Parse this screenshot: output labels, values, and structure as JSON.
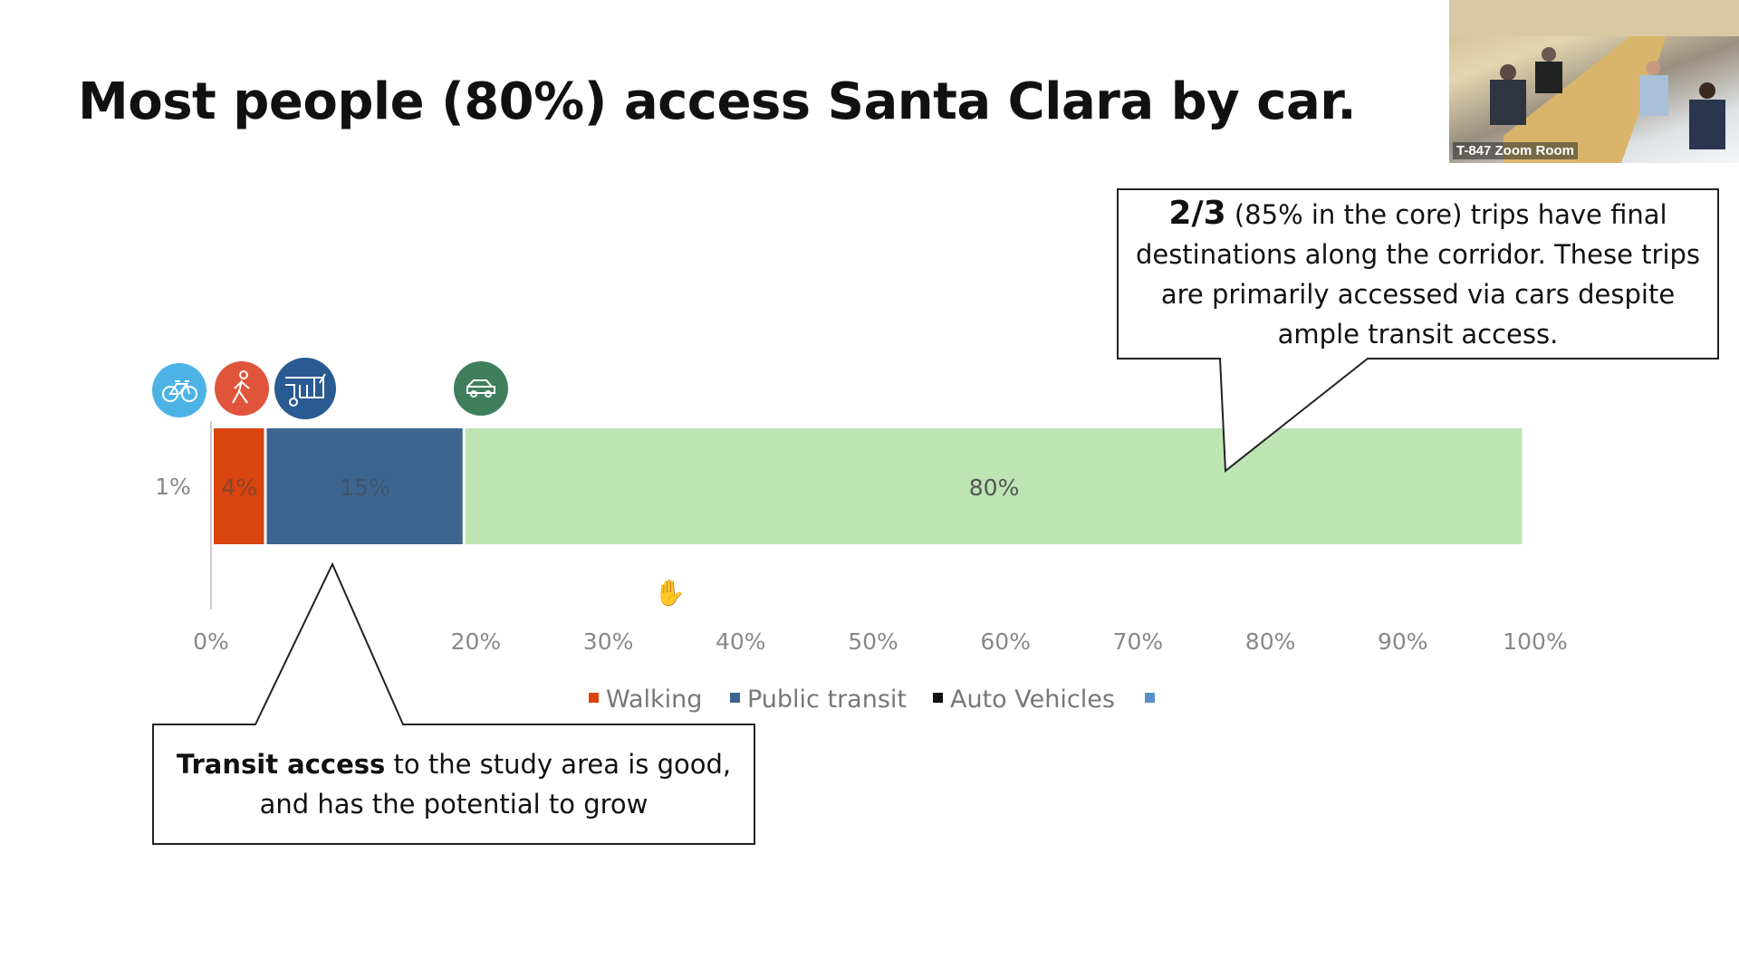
{
  "slide": {
    "title": "Most people (80%) access Santa Clara by car."
  },
  "video_tile": {
    "label": "T-847 Zoom Room"
  },
  "callouts": {
    "top_right": {
      "bold": "2/3",
      "text": " (85% in the core) trips have final destinations along the corridor. These trips are primarily accessed via cars despite ample transit access."
    },
    "bottom_left": {
      "bold": "Transit access",
      "text": " to the study area is good, and has the potential to grow"
    }
  },
  "chart_data": {
    "type": "bar",
    "orientation": "horizontal-stacked-100",
    "categories": [
      ""
    ],
    "series": [
      {
        "name": "",
        "values": [
          1
        ],
        "label": "1%",
        "color": "#4db3e6",
        "icon": "bicycle-icon"
      },
      {
        "name": "Walking",
        "values": [
          4
        ],
        "label": "4%",
        "color": "#d9440f",
        "icon": "pedestrian-icon"
      },
      {
        "name": "Public transit",
        "values": [
          15
        ],
        "label": "15%",
        "color": "#3c6690",
        "icon": "bus-icon"
      },
      {
        "name": "Auto Vehicles",
        "values": [
          80
        ],
        "label": "80%",
        "color": "#bde4b3",
        "icon": "car-icon"
      }
    ],
    "icon_colors": {
      "bicycle-icon": "#4db3e6",
      "pedestrian-icon": "#e0543c",
      "bus-icon": "#2a5a92",
      "car-icon": "#3f7f5c"
    },
    "xlim": [
      0,
      100
    ],
    "xticks": [
      "0%",
      "20%",
      "30%",
      "40%",
      "50%",
      "60%",
      "70%",
      "80%",
      "90%",
      "100%"
    ],
    "xtick_values": [
      0,
      20,
      30,
      40,
      50,
      60,
      70,
      80,
      90,
      100
    ],
    "legend": [
      {
        "label": "Walking",
        "color": "#d9440f"
      },
      {
        "label": "Public transit",
        "color": "#3c6690"
      },
      {
        "label": "Auto Vehicles",
        "color": "#111111"
      },
      {
        "label": "",
        "color": "#5b8fc9"
      }
    ],
    "legend_position": "bottom",
    "grid": false
  }
}
